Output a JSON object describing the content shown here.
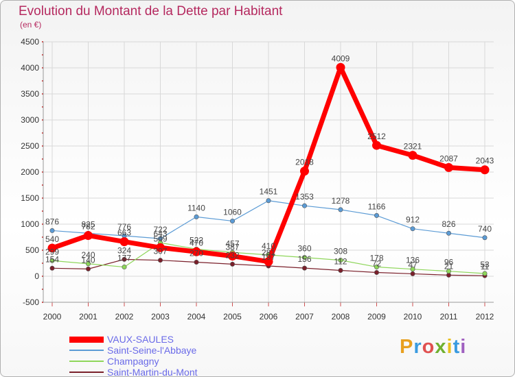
{
  "title": "Evolution du Montant de la Dette par Habitant",
  "unit_label": "(en €)",
  "logo": {
    "text": "Proxiti",
    "colors": [
      "#e8a020",
      "#3a9be0",
      "#e05050",
      "#70b030",
      "#e8c020",
      "#3a9be0",
      "#a060c0"
    ]
  },
  "colors": {
    "title": "#b5295f",
    "axis_text": "#333333",
    "grid": "#d8d8d8",
    "legend_text": "#6a6ae8"
  },
  "chart_data": {
    "type": "line",
    "title": "Evolution du Montant de la Dette par Habitant",
    "subtitle": "(en €)",
    "x": [
      2000,
      2001,
      2002,
      2003,
      2004,
      2005,
      2006,
      2007,
      2008,
      2009,
      2010,
      2011,
      2012
    ],
    "ylim": [
      -500,
      4500
    ],
    "yticks": [
      -500,
      0,
      500,
      1000,
      1500,
      2000,
      2500,
      3000,
      3500,
      4000,
      4500
    ],
    "grid": true,
    "legend_position": "bottom-left",
    "series": [
      {
        "name": "VAUX-SAULES",
        "color": "#ff0000",
        "width": 7,
        "values": [
          540,
          782,
          663,
          549,
          470,
          387,
          281,
          2018,
          4009,
          2512,
          2321,
          2087,
          2043
        ],
        "labels": [
          "540",
          "782",
          "663",
          "549",
          "470",
          "387",
          "281",
          "2018",
          "4009",
          "2512",
          "2321",
          "2087",
          "2043"
        ]
      },
      {
        "name": "Saint-Seine-l'Abbaye",
        "color": "#5b9bd5",
        "width": 1.2,
        "values": [
          876,
          825,
          776,
          722,
          1140,
          1060,
          1451,
          1353,
          1278,
          1166,
          912,
          826,
          740
        ],
        "labels": [
          "876",
          "825",
          "776",
          "722",
          "1140",
          "1060",
          "1451",
          "1353",
          "1278",
          "1166",
          "912",
          "826",
          "740"
        ]
      },
      {
        "name": "Champagny",
        "color": "#8ed65a",
        "width": 1.2,
        "values": [
          299,
          240,
          177,
          643,
          522,
          457,
          410,
          360,
          308,
          178,
          136,
          96,
          53
        ],
        "labels": [
          "299",
          "240",
          "177",
          "643",
          "522",
          "457",
          "410",
          "360",
          "308",
          "178",
          "136",
          "96",
          "53"
        ]
      },
      {
        "name": "Saint-Martin-du-Mont",
        "color": "#7a1f2a",
        "width": 1.2,
        "values": [
          154,
          140,
          324,
          307,
          270,
          232,
          197,
          156,
          112,
          72,
          47,
          21,
          11
        ],
        "labels": [
          "154",
          "140",
          "324",
          "307",
          "270",
          "232",
          "197",
          "156",
          "112",
          "72",
          "47",
          "21",
          "11"
        ]
      }
    ]
  }
}
